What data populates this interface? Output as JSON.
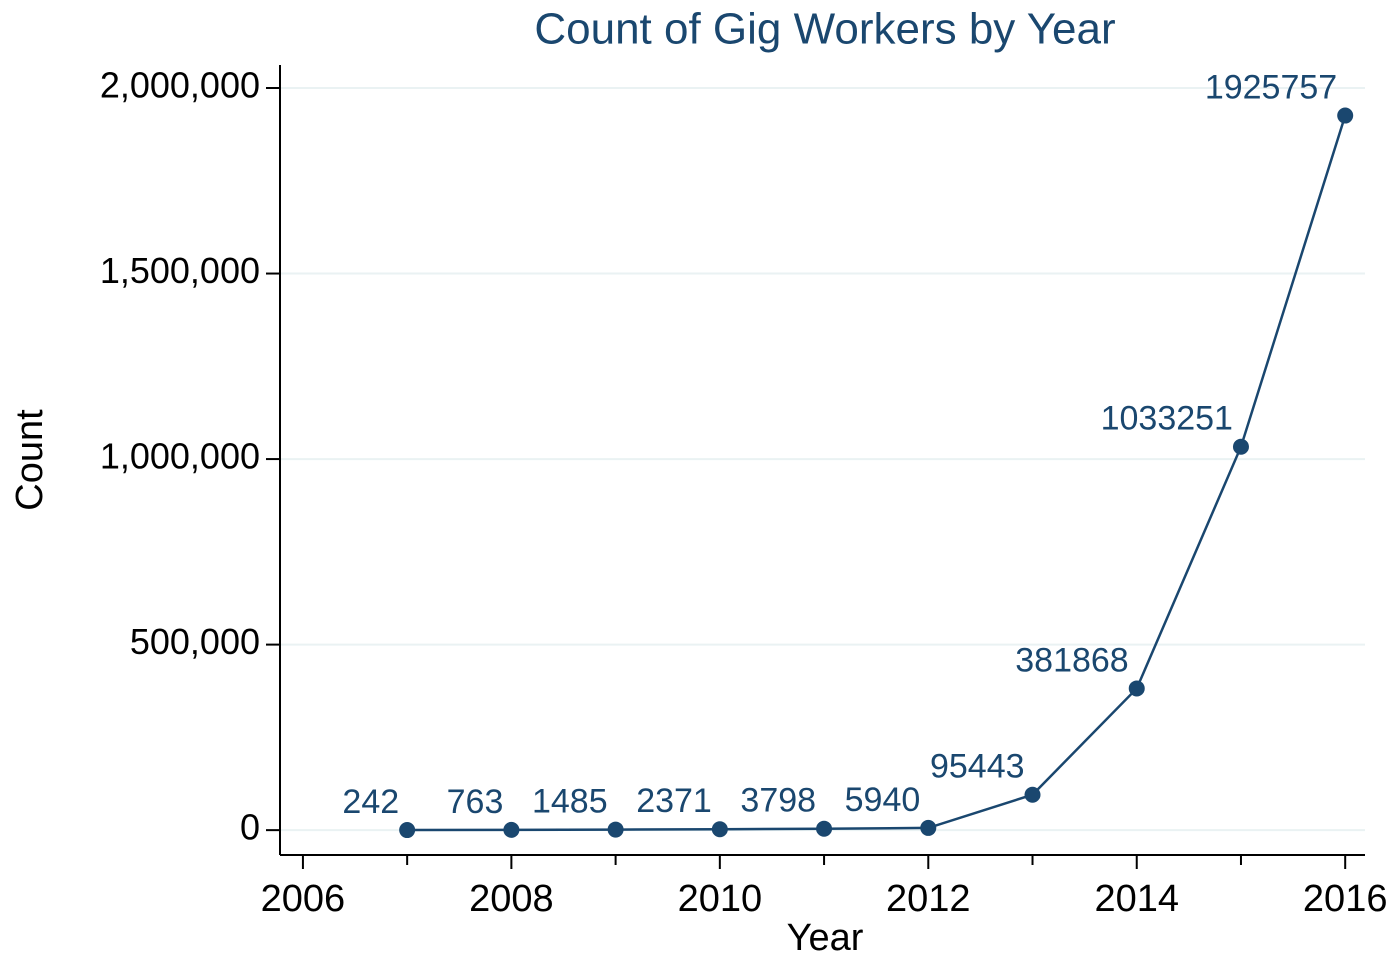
{
  "chart_data": {
    "type": "line",
    "title": "Count of Gig Workers by Year",
    "x_label": "Year",
    "y_label": "Count",
    "x": [
      2007,
      2008,
      2009,
      2010,
      2011,
      2012,
      2013,
      2014,
      2015,
      2016
    ],
    "series": [
      {
        "name": "Count",
        "color": "#1a476f",
        "values": [
          242,
          763,
          1485,
          2371,
          3798,
          5940,
          95443,
          381868,
          1033251,
          1925757
        ]
      }
    ],
    "xlim": [
      2005.78,
      2016.19
    ],
    "xticks": [
      2006,
      2008,
      2010,
      2012,
      2014,
      2016
    ],
    "ylim": [
      -67000,
      2062000
    ],
    "yticks": [
      0,
      {
        "value": 500000,
        "label": "500,000"
      },
      {
        "value": 1000000,
        "label": "1,000,000"
      },
      {
        "value": 1500000,
        "label": "1,500,000"
      },
      {
        "value": 2000000,
        "label": "2,000,000"
      }
    ],
    "grid": true
  }
}
